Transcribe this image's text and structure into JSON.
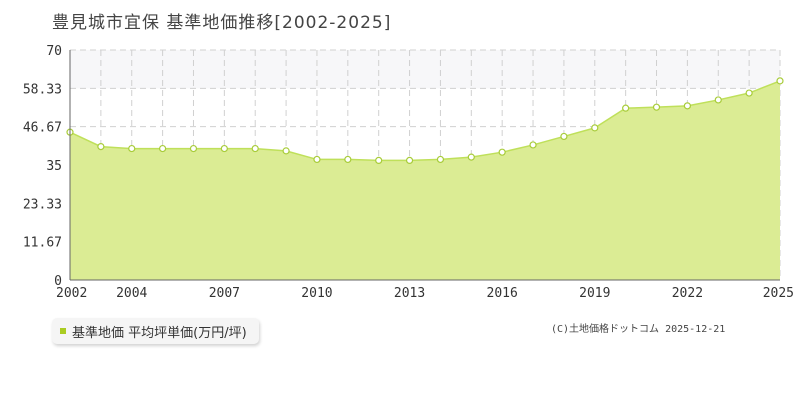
{
  "page": {
    "title": "豊見城市宜保 基準地価推移[2002-2025]",
    "credit": "(C)土地価格ドットコム 2025-12-21"
  },
  "legend": {
    "label": "基準地価 平均坪単価(万円/坪)",
    "color": "#aacc22"
  },
  "colors": {
    "fill": "#dbec94",
    "line": "#bfe05a",
    "marker_stroke": "#a8cc3a",
    "band": "#f7f7f9",
    "grid": "#d0d0d0"
  },
  "chart_data": {
    "type": "area",
    "x": [
      2002,
      2003,
      2004,
      2005,
      2006,
      2007,
      2008,
      2009,
      2010,
      2011,
      2012,
      2013,
      2014,
      2015,
      2016,
      2017,
      2018,
      2019,
      2020,
      2021,
      2022,
      2023,
      2024,
      2025
    ],
    "series": [
      {
        "name": "基準地価 平均坪単価(万円/坪)",
        "values": [
          45.0,
          40.6,
          40.0,
          40.0,
          40.0,
          40.0,
          40.0,
          39.3,
          36.7,
          36.7,
          36.4,
          36.4,
          36.7,
          37.4,
          38.9,
          41.1,
          43.7,
          46.3,
          52.3,
          52.6,
          53.0,
          54.8,
          56.9,
          60.6
        ]
      }
    ],
    "yticks": [
      "0",
      "11.67",
      "23.33",
      "35",
      "46.67",
      "58.33",
      "70"
    ],
    "xticks": [
      "2002",
      "2004",
      "2007",
      "2010",
      "2013",
      "2016",
      "2019",
      "2022",
      "2025"
    ],
    "xlim": [
      2002,
      2025
    ],
    "ylim": [
      0,
      70
    ],
    "band": [
      58.33,
      70
    ],
    "grid": true
  }
}
